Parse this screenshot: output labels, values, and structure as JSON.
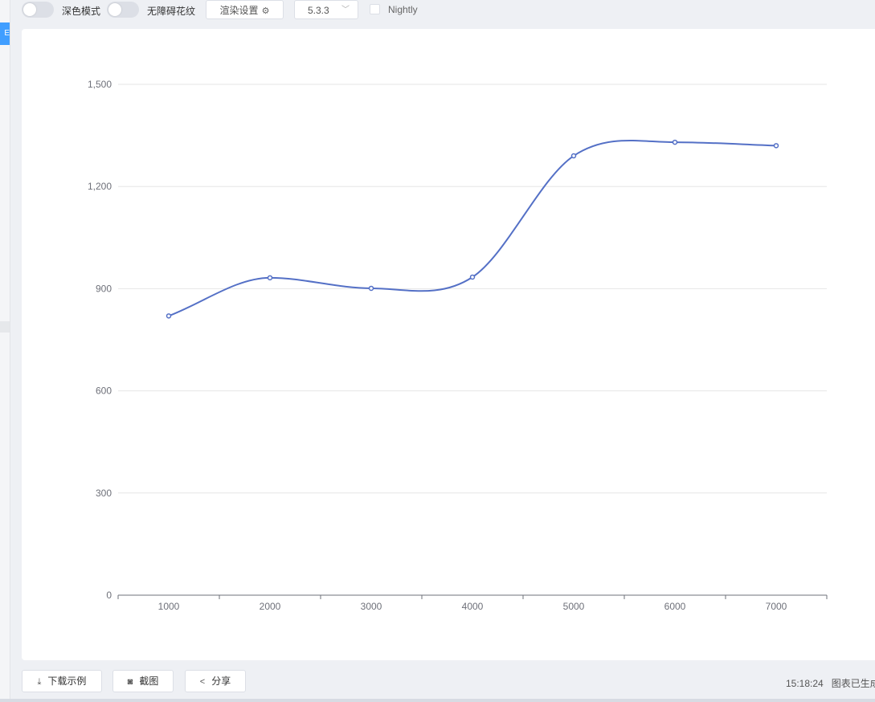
{
  "toolbar": {
    "dark_mode_label": "深色模式",
    "decal_label": "无障碍花纹",
    "render_settings_label": "渲染设置",
    "version": "5.3.3",
    "nightly_label": "Nightly"
  },
  "sidebar": {
    "accent_char": "E"
  },
  "chart_data": {
    "type": "line",
    "smooth": true,
    "x": [
      "1000",
      "2000",
      "3000",
      "4000",
      "5000",
      "6000",
      "7000"
    ],
    "values": [
      820,
      932,
      901,
      934,
      1290,
      1330,
      1320
    ],
    "ylim": [
      0,
      1500
    ],
    "y_ticks": [
      "0",
      "300",
      "600",
      "900",
      "1,200",
      "1,500"
    ],
    "grid": true,
    "line_color": "#5470c6"
  },
  "bottom": {
    "download_label": "下载示例",
    "screenshot_label": "截图",
    "share_label": "分享",
    "time": "15:18:24",
    "status_message": "图表已生成"
  }
}
